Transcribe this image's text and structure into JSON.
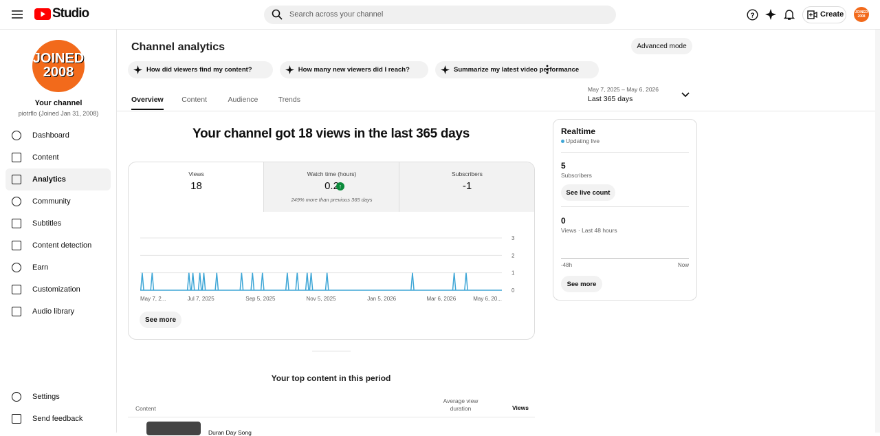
{
  "header": {
    "logo": "Studio",
    "search_placeholder": "Search across your channel",
    "create": "Create",
    "avatar": [
      "JOINED",
      "2008"
    ]
  },
  "sidebar": {
    "avatar": [
      "JOINED",
      "2008"
    ],
    "channel_label": "Your channel",
    "handle": "piotrflo (Joined Jan 31, 2008)",
    "nav": [
      "Dashboard",
      "Content",
      "Analytics",
      "Community",
      "Subtitles",
      "Content detection",
      "Earn",
      "Customization",
      "Audio library"
    ],
    "active": 2,
    "footer": [
      "Settings",
      "Send feedback"
    ]
  },
  "main": {
    "title": "Channel analytics",
    "advanced_mode": "Advanced mode",
    "prompts": [
      "How did viewers find my content?",
      "How many new viewers did I reach?",
      "Summarize my latest video performance"
    ],
    "tabs": [
      "Overview",
      "Content",
      "Audience",
      "Trends"
    ],
    "active_tab": 0,
    "date_range": "May 7, 2025 – May 6, 2026",
    "date_label": "Last 365 days",
    "headline": "Your channel got 18 views in the last 365 days",
    "metrics": [
      {
        "label": "Views",
        "value": 18
      },
      {
        "label": "Watch time (hours)",
        "value": 0.2,
        "note": "249% more than previous 365 days"
      },
      {
        "label": "Subscribers",
        "value": -1
      }
    ],
    "chart": {
      "type": "line",
      "color": "#3ea6d6",
      "x": [
        2,
        12,
        49,
        53,
        60,
        64,
        77,
        102,
        113,
        123,
        148,
        158,
        168,
        172,
        188,
        274,
        316,
        328
      ],
      "values": [
        1,
        1,
        1,
        1,
        1,
        1,
        1,
        1,
        1,
        1,
        1,
        1,
        1,
        1,
        1,
        1,
        1,
        1
      ],
      "xlim": [
        0,
        364
      ],
      "xticks": [
        {
          "value": 0,
          "label": "May 7, 2..."
        },
        {
          "value": 61,
          "label": "Jul 7, 2025"
        },
        {
          "value": 121,
          "label": "Sep 5, 2025"
        },
        {
          "value": 182,
          "label": "Nov 5, 2025"
        },
        {
          "value": 243,
          "label": "Jan 5, 2026"
        },
        {
          "value": 303,
          "label": "Mar 6, 2026"
        },
        {
          "value": 364,
          "label": "May 6, 20..."
        }
      ],
      "ylim": [
        0,
        3
      ],
      "yticks": [
        0,
        1,
        2,
        3
      ],
      "grid": true
    },
    "see_more": "See more",
    "top_content": {
      "title": "Your top content in this period",
      "columns": [
        "Content",
        "Average view duration",
        "Views"
      ],
      "rows": [
        [
          "Duran Day Song"
        ]
      ]
    }
  },
  "realtime": {
    "title": "Realtime",
    "status": "Updating live",
    "subscribers": 5,
    "subscribers_label": "Subscribers",
    "live_count": "See live count",
    "views": 0,
    "views_label": "Views · Last 48 hours",
    "axis": [
      "-48h",
      "Now"
    ],
    "see_more": "See more"
  }
}
